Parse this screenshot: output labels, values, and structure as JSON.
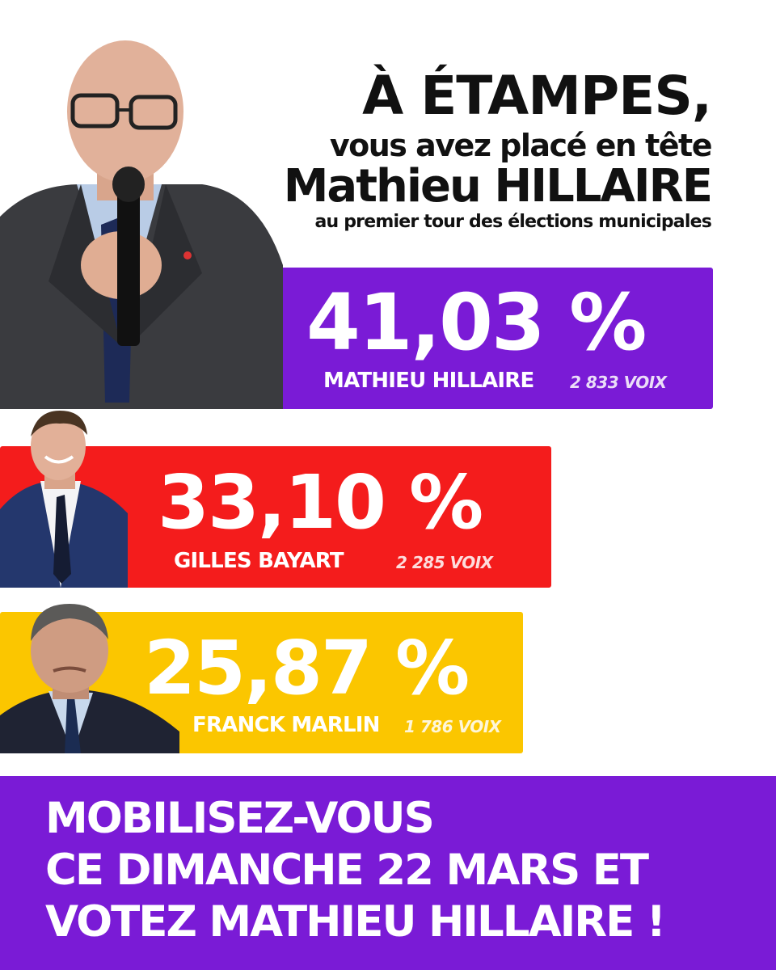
{
  "headline": {
    "line1": "À ÉTAMPES,",
    "line2": "vous avez placé en tête",
    "line3": "Mathieu HILLAIRE",
    "line4": "au premier tour des élections municipales"
  },
  "results": [
    {
      "percent": "41,03 %",
      "name": "MATHIEU HILLAIRE",
      "votes": "2 833 VOIX",
      "color": "#7a1bd6",
      "share": 0.4103
    },
    {
      "percent": "33,10 %",
      "name": "GILLES BAYART",
      "votes": "2 285 VOIX",
      "color": "#f41c1c",
      "share": 0.331
    },
    {
      "percent": "25,87 %",
      "name": "FRANCK MARLIN",
      "votes": "1 786 VOIX",
      "color": "#fbc600",
      "share": 0.2587
    }
  ],
  "cta": {
    "line1": "MOBILISEZ-VOUS",
    "line2": "CE DIMANCHE 22 MARS ET",
    "line3": "VOTEZ MATHIEU HILLAIRE !",
    "color": "#7a1bd6"
  },
  "icons": [
    "candidate-photo-hillaire",
    "candidate-photo-bayart",
    "candidate-photo-marlin",
    "microphone-icon"
  ]
}
